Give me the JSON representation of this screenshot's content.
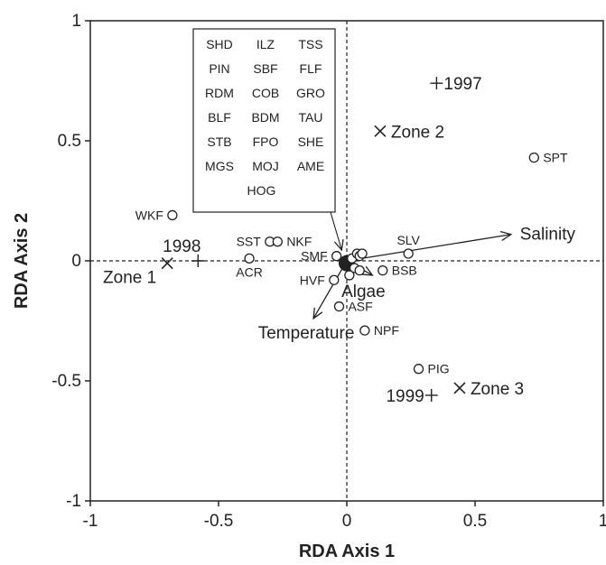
{
  "chart_data": {
    "type": "scatter",
    "xlabel": "RDA Axis 1",
    "ylabel": "RDA Axis 2",
    "xlim": [
      -1,
      1
    ],
    "ylim": [
      -1,
      1
    ],
    "xticks": [
      -1,
      -0.5,
      0,
      0.5,
      1
    ],
    "xtick_labels": [
      "-1",
      "-0.5",
      "0",
      "0.5",
      "1"
    ],
    "yticks": [
      -1,
      -0.5,
      0,
      0.5,
      1
    ],
    "ytick_labels": [
      "-1",
      "-0.5",
      "0",
      "0.5",
      "1"
    ],
    "grid": false,
    "zero_lines": "dashed",
    "species": [
      {
        "label": "WKF",
        "x": -0.68,
        "y": 0.19,
        "label_pos": "left"
      },
      {
        "label": "SST",
        "x": -0.3,
        "y": 0.08,
        "label_pos": "left"
      },
      {
        "label": "NKF",
        "x": -0.27,
        "y": 0.08,
        "label_pos": "right"
      },
      {
        "label": "ACR",
        "x": -0.38,
        "y": 0.01,
        "label_pos": "below"
      },
      {
        "label": "SMF",
        "x": -0.04,
        "y": 0.02,
        "label_pos": "left"
      },
      {
        "label": "HVF",
        "x": -0.05,
        "y": -0.08,
        "label_pos": "left"
      },
      {
        "label": "ASF",
        "x": -0.03,
        "y": -0.19,
        "label_pos": "right"
      },
      {
        "label": "NPF",
        "x": 0.07,
        "y": -0.29,
        "label_pos": "right"
      },
      {
        "label": "SLV",
        "x": 0.24,
        "y": 0.03,
        "label_pos": "above"
      },
      {
        "label": "BSB",
        "x": 0.14,
        "y": -0.04,
        "label_pos": "right"
      },
      {
        "label": "SPT",
        "x": 0.73,
        "y": 0.43,
        "label_pos": "right"
      },
      {
        "label": "PIG",
        "x": 0.28,
        "y": -0.45,
        "label_pos": "right"
      },
      {
        "label": "",
        "x": 0.02,
        "y": 0.01
      },
      {
        "label": "",
        "x": 0.04,
        "y": 0.03
      },
      {
        "label": "",
        "x": 0.05,
        "y": 0.02
      },
      {
        "label": "",
        "x": 0.06,
        "y": 0.03
      },
      {
        "label": "",
        "x": 0.03,
        "y": -0.03
      },
      {
        "label": "",
        "x": 0.05,
        "y": -0.04
      },
      {
        "label": "",
        "x": 0.01,
        "y": -0.06
      }
    ],
    "species_cluster": {
      "x": 0.0,
      "y": -0.01
    },
    "zones": [
      {
        "label": "Zone 1",
        "x": -0.7,
        "y": -0.01,
        "label_pos": "left-below"
      },
      {
        "label": "Zone 2",
        "x": 0.13,
        "y": 0.54,
        "label_pos": "right"
      },
      {
        "label": "Zone 3",
        "x": 0.44,
        "y": -0.53,
        "label_pos": "right"
      }
    ],
    "years": [
      {
        "label": "1997",
        "x": 0.35,
        "y": 0.74,
        "label_pos": "right"
      },
      {
        "label": "1998",
        "x": -0.58,
        "y": 0.0,
        "label_pos": "left-above"
      },
      {
        "label": "1999",
        "x": 0.33,
        "y": -0.56,
        "label_pos": "left"
      }
    ],
    "vectors": [
      {
        "label": "Salinity",
        "x": 0.64,
        "y": 0.11
      },
      {
        "label": "Temperature",
        "x": -0.13,
        "y": -0.24
      },
      {
        "label": "Algae",
        "x": 0.1,
        "y": -0.06
      }
    ],
    "legend_box": {
      "rows": [
        [
          "SHD",
          "ILZ",
          "TSS"
        ],
        [
          "PIN",
          "SBF",
          "FLF"
        ],
        [
          "RDM",
          "COB",
          "GRO"
        ],
        [
          "BLF",
          "BDM",
          "TAU"
        ],
        [
          "STB",
          "FPO",
          "SHE"
        ],
        [
          "MGS",
          "MOJ",
          "AME"
        ],
        [
          "HOG"
        ]
      ],
      "placement": "top-left",
      "points_to": {
        "x": -0.02,
        "y": 0.03
      }
    }
  }
}
